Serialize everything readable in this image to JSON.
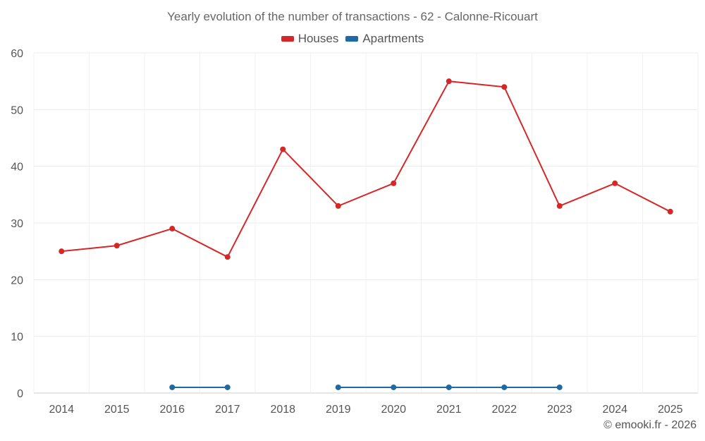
{
  "chart_data": {
    "type": "line",
    "title": "Yearly evolution of the number of transactions - 62 - Calonne-Ricouart",
    "xlabel": "",
    "ylabel": "",
    "categories": [
      "2014",
      "2015",
      "2016",
      "2017",
      "2018",
      "2019",
      "2020",
      "2021",
      "2022",
      "2023",
      "2024",
      "2025"
    ],
    "ylim": [
      0,
      60
    ],
    "yticks": [
      0,
      10,
      20,
      30,
      40,
      50,
      60
    ],
    "grid": true,
    "legend_position": "top-center",
    "series": [
      {
        "name": "Houses",
        "color": "#d62728",
        "values": [
          25,
          26,
          29,
          24,
          43,
          33,
          37,
          55,
          54,
          33,
          37,
          32
        ]
      },
      {
        "name": "Apartments",
        "color": "#1f6aa5",
        "values": [
          null,
          null,
          1,
          1,
          null,
          1,
          1,
          1,
          1,
          1,
          null,
          null
        ]
      }
    ]
  },
  "credit": "© emooki.fr - 2026"
}
